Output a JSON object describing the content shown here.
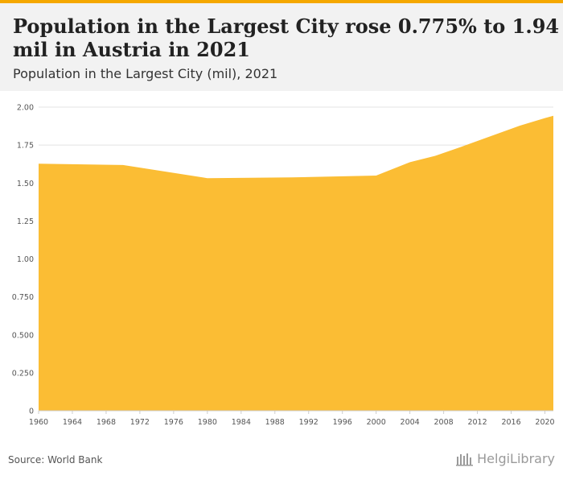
{
  "header": {
    "title": "Population in the Largest City rose 0.775% to 1.94 mil in Austria in 2021",
    "subtitle": "Population in the Largest City (mil), 2021"
  },
  "footer": {
    "source": "Source: World Bank",
    "logo_text": "HelgiLibrary"
  },
  "colors": {
    "accent": "#f5a800",
    "area_fill": "#fbbd34",
    "header_bg": "#f2f2f2"
  },
  "chart_data": {
    "type": "area",
    "title": "Population in the Largest City (mil), 2021",
    "xlabel": "",
    "ylabel": "",
    "ylim": [
      0,
      2.0
    ],
    "xlim": [
      1960,
      2021
    ],
    "grid": true,
    "legend": "none",
    "y_ticks": [
      {
        "value": 0,
        "label": "0"
      },
      {
        "value": 0.25,
        "label": "0.250"
      },
      {
        "value": 0.5,
        "label": "0.500"
      },
      {
        "value": 0.75,
        "label": "0.750"
      },
      {
        "value": 1.0,
        "label": "1.00"
      },
      {
        "value": 1.25,
        "label": "1.25"
      },
      {
        "value": 1.5,
        "label": "1.50"
      },
      {
        "value": 1.75,
        "label": "1.75"
      },
      {
        "value": 2.0,
        "label": "2.00"
      }
    ],
    "x_ticks": [
      "1960",
      "1964",
      "1968",
      "1972",
      "1976",
      "1980",
      "1984",
      "1988",
      "1992",
      "1996",
      "2000",
      "2004",
      "2008",
      "2012",
      "2016",
      "2020"
    ],
    "series": [
      {
        "x": [
          1960,
          1970,
          1980,
          1990,
          2000,
          2004,
          2007,
          2010,
          2013,
          2017,
          2020,
          2021
        ],
        "values": [
          1.627,
          1.619,
          1.532,
          1.537,
          1.549,
          1.637,
          1.679,
          1.737,
          1.797,
          1.877,
          1.928,
          1.943
        ]
      }
    ]
  }
}
